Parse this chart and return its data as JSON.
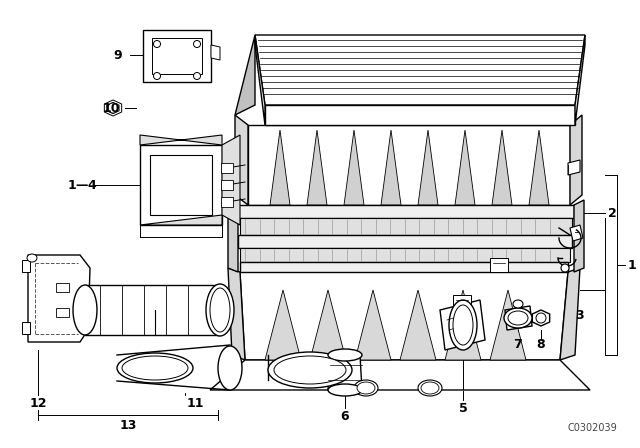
{
  "background_color": "#ffffff",
  "watermark": "C0302039",
  "line_color": "#000000",
  "lw": 1.0
}
